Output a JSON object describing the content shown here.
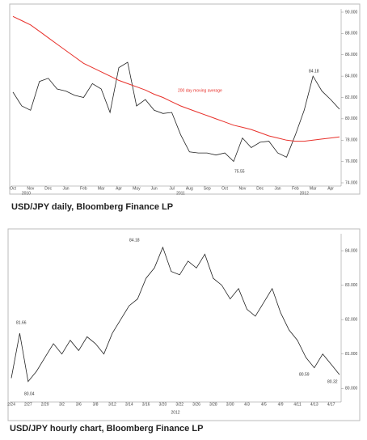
{
  "chart_data": [
    {
      "type": "line",
      "caption": "USD/JPY daily, Bloomberg Finance LP",
      "categories": [
        "Oct",
        null,
        "Nov",
        null,
        "Dec",
        null,
        "Jan",
        null,
        "Feb",
        null,
        "Mar",
        null,
        "Apr",
        null,
        "May",
        null,
        "Jun",
        null,
        "Jul",
        null,
        "Aug",
        null,
        "Sep",
        null,
        "Oct",
        null,
        "Nov",
        null,
        "Dec",
        null,
        "Jan",
        null,
        "Feb",
        null,
        "Mar",
        null,
        "Apr",
        null
      ],
      "year_labels": [
        "2010",
        "2011",
        "2012"
      ],
      "series": [
        {
          "name": "USD/JPY",
          "color": "#222222",
          "values": [
            82.5,
            81.2,
            80.8,
            83.5,
            83.8,
            82.8,
            82.6,
            82.2,
            82.0,
            83.3,
            82.8,
            80.6,
            84.8,
            85.3,
            81.2,
            81.8,
            80.8,
            80.5,
            80.6,
            78.5,
            76.9,
            76.8,
            76.8,
            76.6,
            76.8,
            76.0,
            78.2,
            77.3,
            77.8,
            77.9,
            76.8,
            76.4,
            78.5,
            80.8,
            84.0,
            82.6,
            81.8,
            80.9
          ]
        },
        {
          "name": "200 day moving average",
          "color": "#e8302a",
          "values": [
            89.6,
            89.2,
            88.8,
            88.2,
            87.6,
            87.0,
            86.4,
            85.8,
            85.2,
            84.8,
            84.4,
            84.0,
            83.6,
            83.3,
            83.0,
            82.7,
            82.3,
            82.0,
            81.6,
            81.2,
            80.9,
            80.6,
            80.3,
            80.0,
            79.7,
            79.4,
            79.2,
            79.0,
            78.7,
            78.4,
            78.2,
            78.0,
            77.9,
            77.9,
            78.0,
            78.1,
            78.2,
            78.3
          ]
        }
      ],
      "annotations": [
        "84.18",
        "75.55"
      ],
      "ylim": [
        74,
        90
      ],
      "yticks": [
        {
          "value": 74,
          "label": "74.000"
        },
        {
          "value": 76,
          "label": "76.000"
        },
        {
          "value": 78,
          "label": "78.000"
        },
        {
          "value": 80,
          "label": "80.000"
        },
        {
          "value": 82,
          "label": "82.000"
        },
        {
          "value": 84,
          "label": "84.000"
        },
        {
          "value": 86,
          "label": "86.000"
        },
        {
          "value": 88,
          "label": "88.000"
        },
        {
          "value": 90,
          "label": "90.000"
        }
      ]
    },
    {
      "type": "line",
      "caption": "USD/JPY hourly chart, Bloomberg Finance LP",
      "categories": [
        "2/24",
        null,
        "2/27",
        null,
        "2/29",
        null,
        "3/2",
        null,
        "3/6",
        null,
        "3/8",
        null,
        "3/12",
        null,
        "3/14",
        null,
        "3/16",
        null,
        "3/20",
        null,
        "3/22",
        null,
        "3/26",
        null,
        "3/28",
        null,
        "3/30",
        null,
        "4/3",
        null,
        "4/5",
        null,
        "4/9",
        null,
        "4/11",
        null,
        "4/13",
        null,
        "4/17",
        null
      ],
      "year_labels": [
        "2012"
      ],
      "series": [
        {
          "name": "USD/JPY",
          "color": "#222222",
          "values": [
            80.3,
            81.6,
            80.2,
            80.5,
            80.9,
            81.3,
            81.0,
            81.4,
            81.1,
            81.5,
            81.3,
            81.0,
            81.6,
            82.0,
            82.4,
            82.6,
            83.2,
            83.5,
            84.1,
            83.4,
            83.3,
            83.7,
            83.5,
            83.9,
            83.2,
            83.0,
            82.6,
            82.9,
            82.3,
            82.1,
            82.5,
            82.9,
            82.2,
            81.7,
            81.4,
            80.9,
            80.6,
            81.0,
            80.7,
            80.4
          ]
        }
      ],
      "annotations": [
        "81.66",
        "80.04",
        "84.18",
        "80.59",
        "80.32"
      ],
      "ylim": [
        79.7,
        84.4
      ],
      "yticks": [
        {
          "value": 80,
          "label": "80.000"
        },
        {
          "value": 81,
          "label": "81.000"
        },
        {
          "value": 82,
          "label": "82.000"
        },
        {
          "value": 83,
          "label": "83.000"
        },
        {
          "value": 84,
          "label": "84.000"
        }
      ]
    }
  ]
}
